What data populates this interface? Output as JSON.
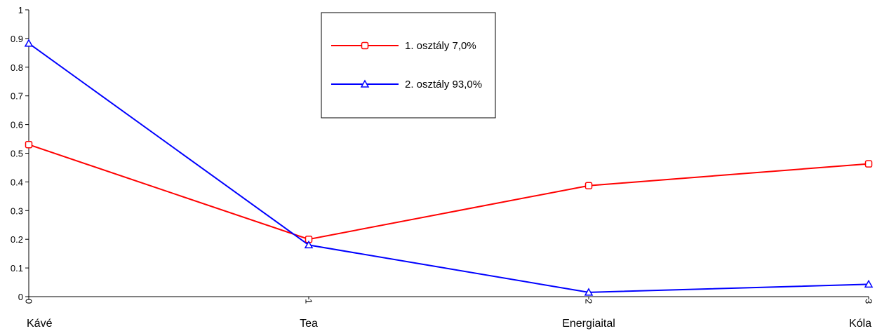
{
  "chart_data": {
    "type": "line",
    "title": "",
    "xlabel": "",
    "ylabel": "",
    "x": [
      0,
      1,
      2,
      3
    ],
    "x_tick_labels": [
      "0",
      "1",
      "2",
      "3"
    ],
    "categories": [
      "Kávé",
      "Tea",
      "Energiaital",
      "Kóla"
    ],
    "ylim": [
      0,
      1
    ],
    "y_ticks": [
      0,
      0.1,
      0.2,
      0.3,
      0.4,
      0.5,
      0.6,
      0.7,
      0.8,
      0.9,
      1
    ],
    "y_tick_labels": [
      "0",
      "0.1",
      "0.2",
      "0.3",
      "0.4",
      "0.5",
      "0.6",
      "0.7",
      "0.8",
      "0.9",
      "1"
    ],
    "grid": false,
    "legend_position": "top-center",
    "series": [
      {
        "name": "1. osztály 7,0%",
        "values": [
          0.53,
          0.2,
          0.387,
          0.463
        ],
        "color": "#ff0000",
        "marker": "square"
      },
      {
        "name": "2. osztály 93,0%",
        "values": [
          0.883,
          0.18,
          0.015,
          0.043
        ],
        "color": "#0000ff",
        "marker": "triangle"
      }
    ]
  }
}
